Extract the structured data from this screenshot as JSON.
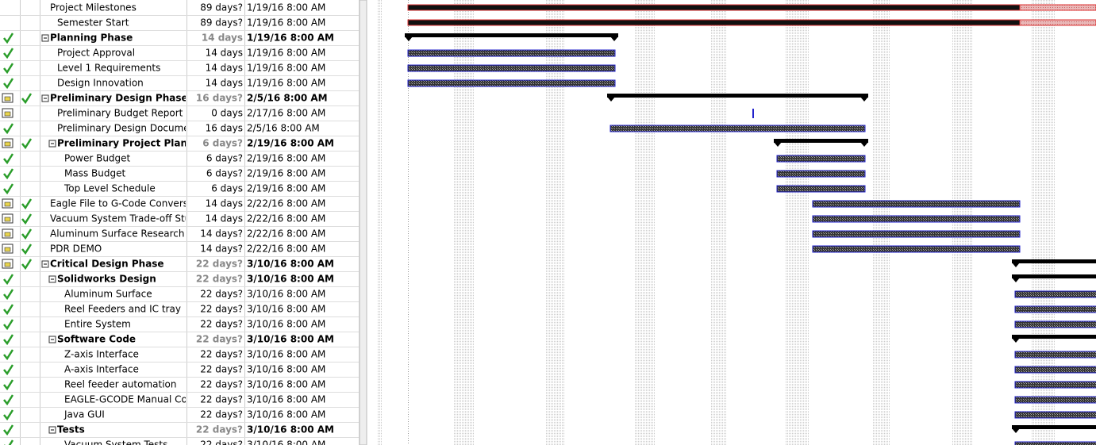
{
  "rows": [
    {
      "name": "Project Milestones",
      "duration": "89 days?",
      "start": "1/19/16 8:00 AM",
      "level": 1
    },
    {
      "name": "Semester Start",
      "duration": "89 days?",
      "start": "1/19/16 8:00 AM",
      "level": 2
    },
    {
      "name": "Planning Phase",
      "duration": "14 days",
      "start": "1/19/16 8:00 AM",
      "level": 1,
      "summary": true,
      "done": true
    },
    {
      "name": "Project Approval",
      "duration": "14 days",
      "start": "1/19/16 8:00 AM",
      "level": 2,
      "done": true
    },
    {
      "name": "Level 1 Requirements",
      "duration": "14 days",
      "start": "1/19/16 8:00 AM",
      "level": 2,
      "done": true
    },
    {
      "name": "Design Innovation",
      "duration": "14 days",
      "start": "1/19/16 8:00 AM",
      "level": 2,
      "done": true
    },
    {
      "name": "Preliminary Design Phase",
      "duration": "16 days?",
      "start": "2/5/16 8:00 AM",
      "level": 1,
      "summary": true,
      "calendar": true,
      "done": true
    },
    {
      "name": "Preliminary Budget Report",
      "duration": "0 days",
      "start": "2/17/16 8:00 AM",
      "level": 2,
      "calendar": true
    },
    {
      "name": "Preliminary Design Documer",
      "duration": "16 days",
      "start": "2/5/16 8:00 AM",
      "level": 2,
      "done": true
    },
    {
      "name": "Preliminary Project Plan",
      "duration": "6 days?",
      "start": "2/19/16 8:00 AM",
      "level": 2,
      "summary": true,
      "calendar": true,
      "done": true
    },
    {
      "name": "Power Budget",
      "duration": "6 days?",
      "start": "2/19/16 8:00 AM",
      "level": 3,
      "done": true
    },
    {
      "name": "Mass Budget",
      "duration": "6 days?",
      "start": "2/19/16 8:00 AM",
      "level": 3,
      "done": true
    },
    {
      "name": "Top Level Schedule",
      "duration": "6 days",
      "start": "2/19/16 8:00 AM",
      "level": 3,
      "done": true
    },
    {
      "name": "Eagle File to G-Code Conversi",
      "duration": "14 days",
      "start": "2/22/16 8:00 AM",
      "level": 1,
      "calendar": true,
      "done": true
    },
    {
      "name": "Vacuum System Trade-off Stu",
      "duration": "14 days",
      "start": "2/22/16 8:00 AM",
      "level": 1,
      "calendar": true,
      "done": true
    },
    {
      "name": "Aluminum Surface Research",
      "duration": "14 days?",
      "start": "2/22/16 8:00 AM",
      "level": 1,
      "calendar": true,
      "done": true
    },
    {
      "name": "PDR DEMO",
      "duration": "14 days?",
      "start": "2/22/16 8:00 AM",
      "level": 1,
      "calendar": true,
      "done": true
    },
    {
      "name": "Critical Design Phase",
      "duration": "22 days?",
      "start": "3/10/16 8:00 AM",
      "level": 1,
      "summary": true,
      "calendar": true,
      "done": true
    },
    {
      "name": "Solidworks Design",
      "duration": "22 days?",
      "start": "3/10/16 8:00 AM",
      "level": 2,
      "summary": true,
      "done": true
    },
    {
      "name": "Aluminum Surface",
      "duration": "22 days?",
      "start": "3/10/16 8:00 AM",
      "level": 3,
      "done": true
    },
    {
      "name": "Reel Feeders and IC tray",
      "duration": "22 days?",
      "start": "3/10/16 8:00 AM",
      "level": 3,
      "done": true
    },
    {
      "name": "Entire System",
      "duration": "22 days?",
      "start": "3/10/16 8:00 AM",
      "level": 3,
      "done": true
    },
    {
      "name": "Software Code",
      "duration": "22 days?",
      "start": "3/10/16 8:00 AM",
      "level": 2,
      "summary": true,
      "done": true
    },
    {
      "name": "Z-axis Interface",
      "duration": "22 days?",
      "start": "3/10/16 8:00 AM",
      "level": 3,
      "done": true
    },
    {
      "name": "A-axis Interface",
      "duration": "22 days?",
      "start": "3/10/16 8:00 AM",
      "level": 3,
      "done": true
    },
    {
      "name": "Reel feeder automation",
      "duration": "22 days?",
      "start": "3/10/16 8:00 AM",
      "level": 3,
      "done": true
    },
    {
      "name": "EAGLE-GCODE Manual Cor",
      "duration": "22 days?",
      "start": "3/10/16 8:00 AM",
      "level": 3,
      "done": true
    },
    {
      "name": "Java GUI",
      "duration": "22 days?",
      "start": "3/10/16 8:00 AM",
      "level": 3,
      "done": true
    },
    {
      "name": "Tests",
      "duration": "22 days?",
      "start": "3/10/16 8:00 AM",
      "level": 2,
      "summary": true,
      "done": true
    },
    {
      "name": "Vacuum System Tests",
      "duration": "22 days?",
      "start": "3/10/16 8:00 AM",
      "level": 3,
      "done": true
    }
  ]
}
